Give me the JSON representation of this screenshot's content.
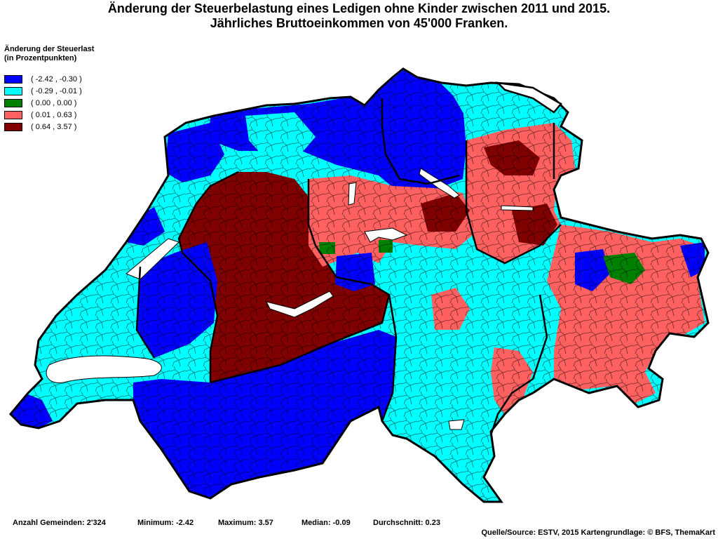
{
  "title": {
    "line1": "Änderung der Steuerbelastung eines Ledigen ohne Kinder zwischen 2011 und 2015.",
    "line2": "Jährliches Bruttoeinkommen von 45'000 Franken."
  },
  "legend": {
    "title_line1": "Änderung der Steuerlast",
    "title_line2": "(in Prozentpunkten)",
    "items": [
      {
        "label": "( -2.42 , -0.30 )",
        "color": "#0000ff"
      },
      {
        "label": "( -0.29 , -0.01 )",
        "color": "#00ffff"
      },
      {
        "label": "( 0.00 , 0.00 )",
        "color": "#008000"
      },
      {
        "label": "( 0.01 , 0.63 )",
        "color": "#ff6060"
      },
      {
        "label": "( 0.64 , 3.57 )",
        "color": "#800000"
      }
    ]
  },
  "stats": {
    "count": "Anzahl Gemeinden: 2'324",
    "minimum": "Minimum: -2.42",
    "maximum": "Maximum: 3.57",
    "median": "Median: -0.09",
    "average": "Durchschnitt: 0.23"
  },
  "source": "Quelle/Source: ESTV, 2015 Kartengrundlage: © BFS, ThemaKart"
}
